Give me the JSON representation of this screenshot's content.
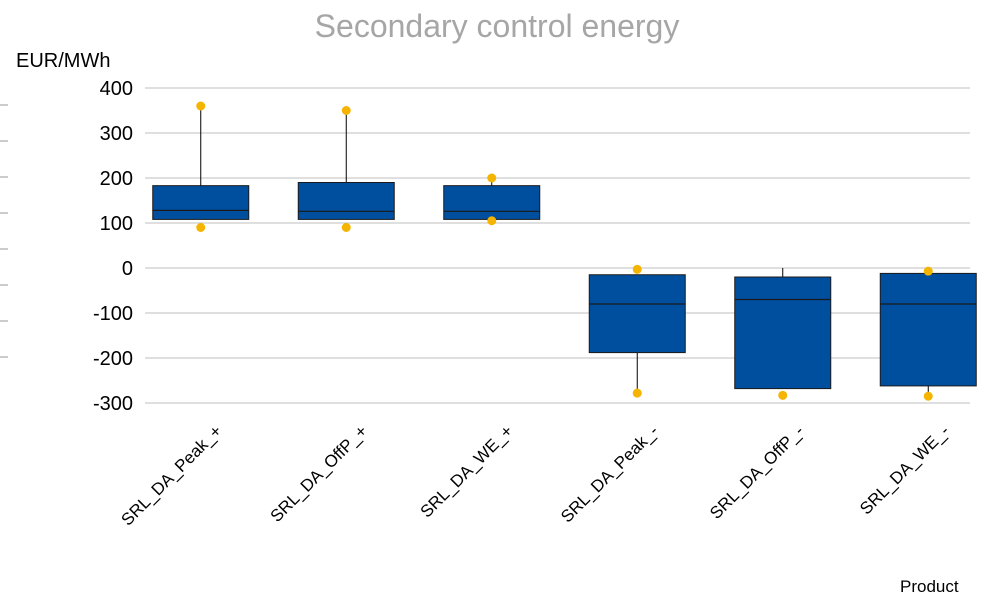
{
  "chart_data": {
    "type": "box",
    "title": "Secondary control energy",
    "ylabel": "EUR/MWh",
    "xlabel": "Product",
    "ylim": [
      -300,
      400
    ],
    "yticks": [
      400,
      300,
      200,
      100,
      0,
      -100,
      -200,
      -300
    ],
    "grid": true,
    "colors": {
      "box": "#004f9f",
      "outlier": "#f5b400",
      "grid": "#bfbfbf",
      "title": "#a6a6a6"
    },
    "categories": [
      "SRL_DA_Peak_+",
      "SRL_DA_OffP_+",
      "SRL_DA_WE_+",
      "SRL_DA_Peak_-",
      "SRL_DA_OffP_-",
      "SRL_DA_WE_-"
    ],
    "boxes": [
      {
        "whisker_low": 108,
        "q1": 108,
        "median": 128,
        "q3": 183,
        "whisker_high": 360,
        "outliers": [
          360,
          90
        ]
      },
      {
        "whisker_low": 108,
        "q1": 108,
        "median": 126,
        "q3": 190,
        "whisker_high": 350,
        "outliers": [
          350,
          90
        ]
      },
      {
        "whisker_low": 108,
        "q1": 108,
        "median": 126,
        "q3": 183,
        "whisker_high": 200,
        "outliers": [
          200,
          105
        ]
      },
      {
        "whisker_low": -278,
        "q1": -188,
        "median": -80,
        "q3": -15,
        "whisker_high": -15,
        "outliers": [
          -3,
          -278
        ]
      },
      {
        "whisker_low": -268,
        "q1": -268,
        "median": -70,
        "q3": -20,
        "whisker_high": 0,
        "outliers": [
          -283
        ]
      },
      {
        "whisker_low": -285,
        "q1": -262,
        "median": -80,
        "q3": -12,
        "whisker_high": -12,
        "outliers": [
          -7,
          -285
        ]
      }
    ]
  }
}
